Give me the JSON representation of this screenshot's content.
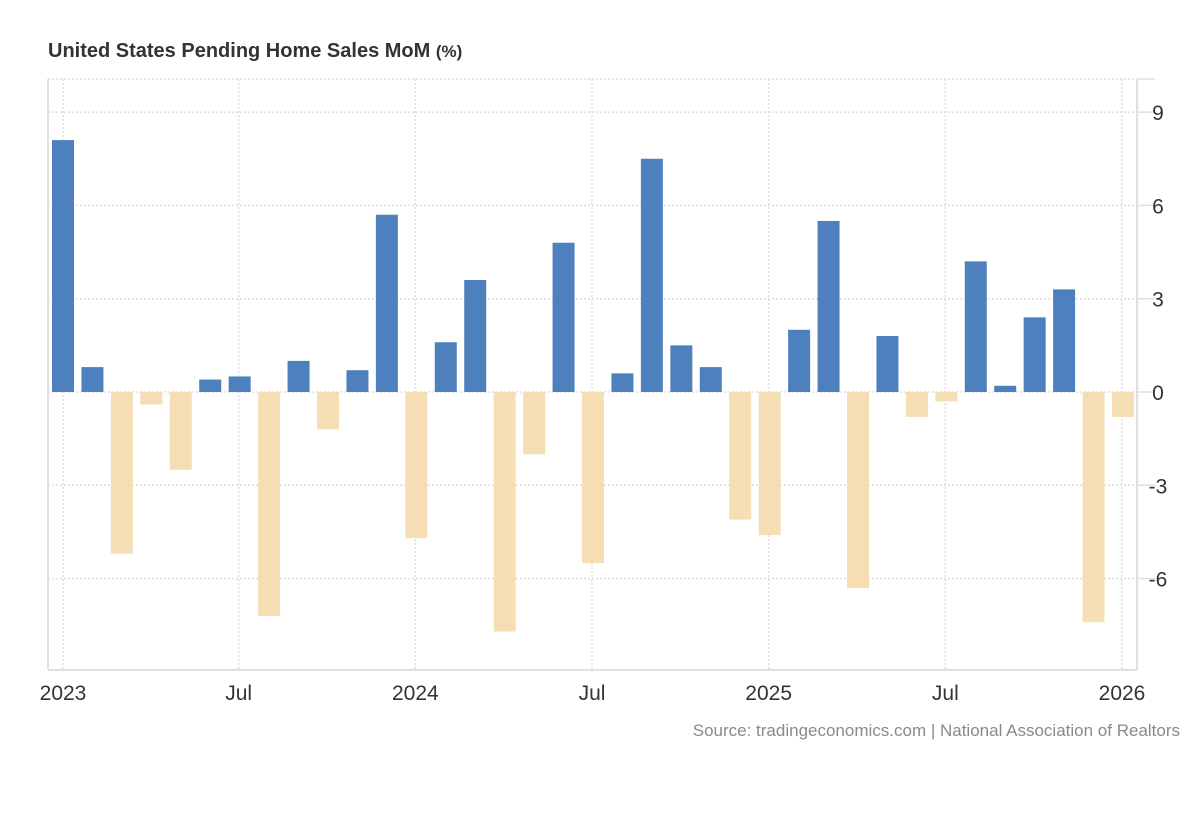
{
  "title": {
    "main": "United States Pending Home Sales MoM",
    "unit": "(%)"
  },
  "source": "Source: tradingeconomics.com | National Association of Realtors",
  "colors": {
    "positive": "#4e80bd",
    "negative": "#f5deb3",
    "grid": "#dddddd",
    "axis": "#e0e0e0",
    "text": "#333333"
  },
  "chart_data": {
    "type": "bar",
    "title": "United States Pending Home Sales MoM (%)",
    "xlabel": "",
    "ylabel": "%",
    "ylim": [
      -9,
      10
    ],
    "y_ticks": [
      9,
      6,
      3,
      0,
      -3,
      -6
    ],
    "y_tick_labels": [
      "9",
      "6",
      "3",
      "0",
      "-3",
      "-6"
    ],
    "x_tick_labels": [
      {
        "label": "2023",
        "index": 0
      },
      {
        "label": "Jul",
        "index": 6
      },
      {
        "label": "2024",
        "index": 12
      },
      {
        "label": "Jul",
        "index": 18
      },
      {
        "label": "2025",
        "index": 24
      },
      {
        "label": "Jul",
        "index": 30
      },
      {
        "label": "2026",
        "index": 36
      }
    ],
    "grid": true,
    "y_axis_position": "right",
    "categories": [
      "2023-01",
      "2023-02",
      "2023-03",
      "2023-04",
      "2023-05",
      "2023-06",
      "2023-07",
      "2023-08",
      "2023-09",
      "2023-10",
      "2023-11",
      "2023-12",
      "2024-01",
      "2024-02",
      "2024-03",
      "2024-04",
      "2024-05",
      "2024-06",
      "2024-07",
      "2024-08",
      "2024-09",
      "2024-10",
      "2024-11",
      "2024-12",
      "2025-01",
      "2025-02",
      "2025-03",
      "2025-04",
      "2025-05",
      "2025-06",
      "2025-07",
      "2025-08",
      "2025-09",
      "2025-10",
      "2025-11",
      "2025-12",
      "2026-01"
    ],
    "values": [
      8.1,
      0.8,
      -5.2,
      -0.4,
      -2.5,
      0.4,
      0.5,
      -7.2,
      1.0,
      -1.2,
      0.7,
      5.7,
      -4.7,
      1.6,
      3.6,
      -7.7,
      -2.0,
      4.8,
      -5.5,
      0.6,
      7.5,
      1.5,
      0.8,
      -4.1,
      -4.6,
      2.0,
      5.5,
      -6.3,
      1.8,
      -0.8,
      -0.3,
      4.2,
      0.2,
      2.4,
      3.3,
      -7.4,
      -0.8
    ]
  }
}
